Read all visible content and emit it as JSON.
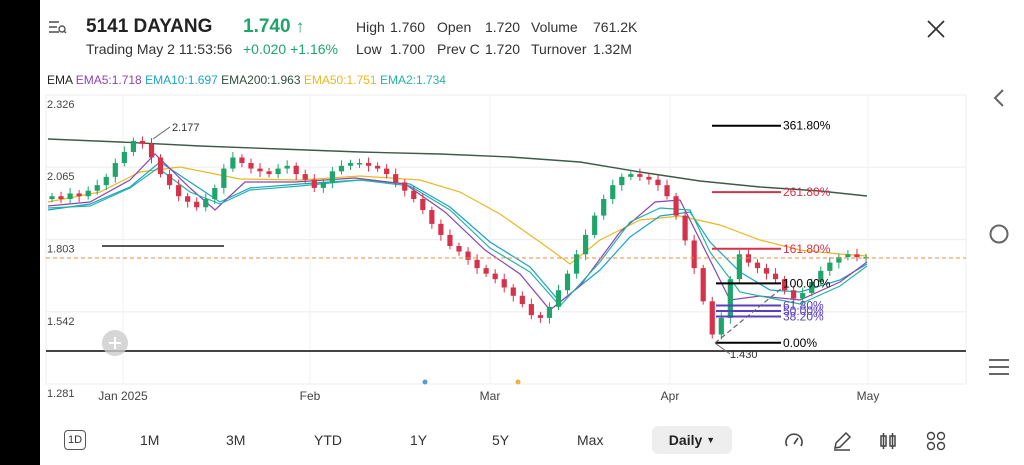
{
  "header": {
    "symbol": "5141 DAYANG",
    "price": "1.740",
    "price_arrow": "↑",
    "status": "Trading",
    "datetime": "May 2 11:53:56",
    "change": "+0.020",
    "change_pct": "+1.16%",
    "stats": [
      {
        "label": "High",
        "value": "1.760",
        "color": "#1fa56b"
      },
      {
        "label": "Open",
        "value": "1.720",
        "color": "#333333"
      },
      {
        "label": "Volume",
        "value": "761.2K",
        "color": "#333333"
      },
      {
        "label": "Low",
        "value": "1.700",
        "color": "#d6324b"
      },
      {
        "label": "Prev C",
        "value": "1.720",
        "color": "#333333"
      },
      {
        "label": "Turnover",
        "value": "1.32M",
        "color": "#333333"
      }
    ]
  },
  "ema_legend": [
    {
      "text": "EMA",
      "color": "#222222"
    },
    {
      "text": "EMA5:1.718",
      "color": "#8e44ad"
    },
    {
      "text": "EMA10:1.697",
      "color": "#1aa3c8"
    },
    {
      "text": "EMA200:1.963",
      "color": "#2f4f3f"
    },
    {
      "text": "EMA50:1.751",
      "color": "#e8b923"
    },
    {
      "text": "EMA2:1.734",
      "color": "#27b3a3"
    }
  ],
  "chart_data": {
    "type": "candlestick",
    "y_ticks": [
      "2.326",
      "2.065",
      "1.803",
      "1.542",
      "1.281"
    ],
    "x_ticks": [
      "Jan 2025",
      "Feb",
      "Mar",
      "Apr",
      "May"
    ],
    "ylim": [
      1.281,
      2.326
    ],
    "annotations": {
      "high_label": "2.177",
      "low_label": "1.430",
      "last_price": 1.74
    },
    "fibonacci": [
      {
        "label": "361.80%",
        "value": 2.215,
        "color": "#000000"
      },
      {
        "label": "261.80%",
        "value": 1.975,
        "color": "#d6324b"
      },
      {
        "label": "161.80%",
        "value": 1.77,
        "color": "#d6324b"
      },
      {
        "label": "100.00%",
        "value": 1.645,
        "color": "#000000"
      },
      {
        "label": "61.80%",
        "value": 1.565,
        "color": "#5b3fbf"
      },
      {
        "label": "50.00%",
        "value": 1.545,
        "color": "#5b3fbf"
      },
      {
        "label": "38.20%",
        "value": 1.525,
        "color": "#5b3fbf"
      },
      {
        "label": "0.00%",
        "value": 1.43,
        "color": "#000000"
      }
    ],
    "support_line": 1.4,
    "drawn_line": 1.785,
    "ema200_value": 1.963,
    "ema50_value": 1.751
  },
  "tabs": {
    "items": [
      "1D",
      "1M",
      "3M",
      "YTD",
      "1Y",
      "5Y",
      "Max"
    ],
    "interval": "Daily"
  },
  "icons": {
    "menu": "menu-icon",
    "close": "close-icon",
    "back": "chevron-left-icon",
    "home": "circle-icon",
    "recent": "hamburger-icon"
  }
}
